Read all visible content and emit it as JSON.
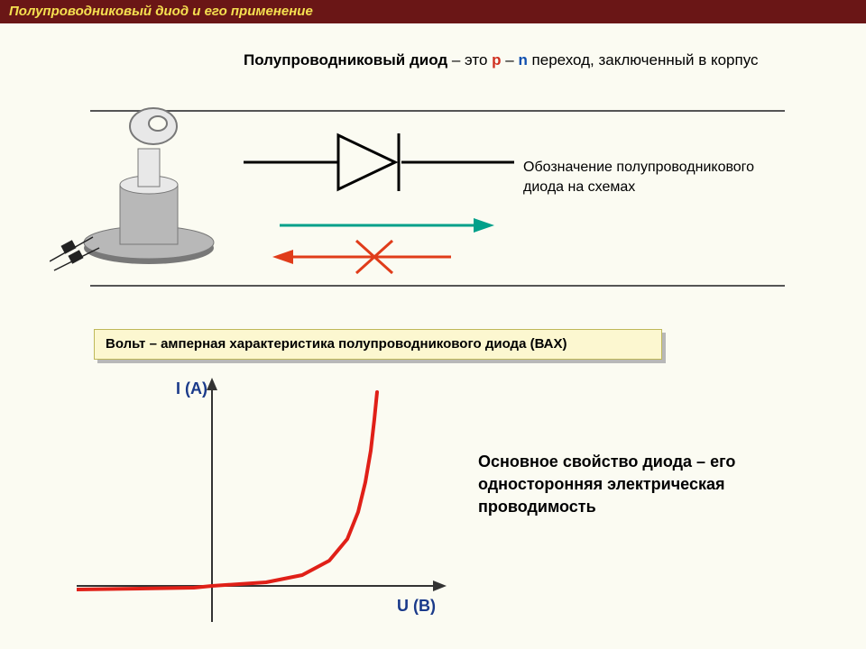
{
  "header": {
    "title": "Полупроводниковый диод и его применение"
  },
  "definition": {
    "term": "Полупроводниковый диод",
    "mid1": " – это ",
    "p": "p",
    "dash": " – ",
    "n": "n",
    "mid2": " переход, заключенный в корпус"
  },
  "diode_symbol": {
    "caption": "Обозначение полупроводникового диода на схемах",
    "line_color": "#000000",
    "line_width": 3,
    "arrow_forward_color": "#00a08a",
    "arrow_back_color": "#e03c1a",
    "arrow_width": 3
  },
  "photo": {
    "body_color": "#b8b8b8",
    "body_dark": "#787878",
    "body_light": "#e8e8e8",
    "label_color": "#333333"
  },
  "vac": {
    "label": "Вольт – амперная характеристика полупроводникового диода (ВАХ)"
  },
  "chart": {
    "type": "line",
    "xlabel": "U (B)",
    "ylabel": "I (A)",
    "label_color": "#1a3a8a",
    "label_fontsize": 18,
    "axis_color": "#333333",
    "axis_width": 2,
    "curve_color": "#e02018",
    "curve_width": 4,
    "x_origin": 150,
    "y_origin": 235,
    "xlim": [
      -150,
      240
    ],
    "ylim": [
      -30,
      220
    ],
    "curve_points": [
      [
        -150,
        -4
      ],
      [
        -80,
        -3
      ],
      [
        -20,
        -2
      ],
      [
        0,
        0
      ],
      [
        60,
        4
      ],
      [
        100,
        12
      ],
      [
        130,
        28
      ],
      [
        150,
        52
      ],
      [
        162,
        82
      ],
      [
        170,
        115
      ],
      [
        176,
        150
      ],
      [
        180,
        185
      ],
      [
        183,
        215
      ]
    ]
  },
  "property": {
    "text": "Основное свойство диода – его односторонняя электрическая проводимость"
  }
}
